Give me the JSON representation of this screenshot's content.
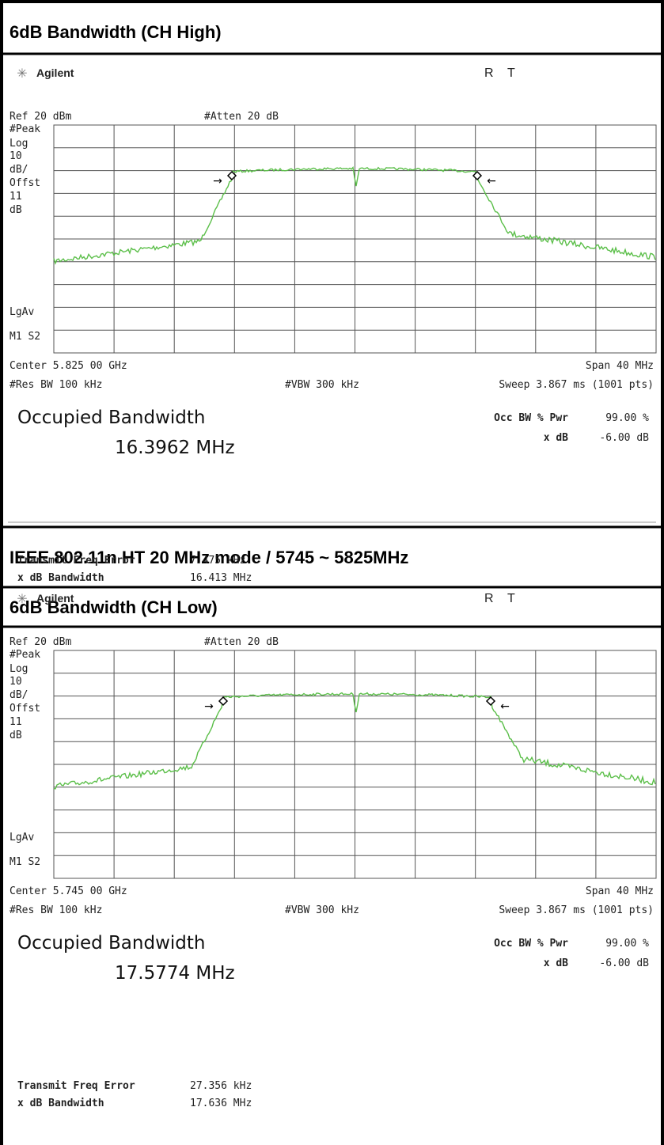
{
  "header1": "6dB Bandwidth (CH High)",
  "heading": "IEEE 802.11n HT 20 MHz mode / 5745 ~ 5825MHz",
  "header2": "6dB Bandwidth (CH Low)",
  "panels": [
    {
      "brand": "Agilent",
      "r": "R",
      "t": "T",
      "ref": "Ref 20 dBm",
      "atten": "#Atten 20 dB",
      "left_labels": [
        "#Peak",
        "Log",
        "10",
        "dB/",
        "Offst",
        "11",
        "dB"
      ],
      "lgav": "LgAv",
      "marker": "M1 S2",
      "center": "Center 5.825 00 GHz",
      "span": "Span 40 MHz",
      "res_bw": "#Res BW 100 kHz",
      "vbw": "#VBW 300 kHz",
      "sweep": "Sweep 3.867 ms (1001 pts)",
      "occ_title": "Occupied Bandwidth",
      "occ_value": "16.3962 MHz",
      "occ_pwr_label": "Occ BW % Pwr",
      "occ_pwr": "99.00 %",
      "xdb_label": "x dB",
      "xdb": "-6.00 dB",
      "tfe_label": "Transmit Freq Error",
      "tfe": "7.475 kHz",
      "xbw_label": "x dB Bandwidth",
      "xbw": "16.413 MHz"
    },
    {
      "brand": "Agilent",
      "r": "R",
      "t": "T",
      "ref": "Ref 20 dBm",
      "atten": "#Atten 20 dB",
      "left_labels": [
        "#Peak",
        "Log",
        "10",
        "dB/",
        "Offst",
        "11",
        "dB"
      ],
      "lgav": "LgAv",
      "marker": "M1 S2",
      "center": "Center 5.745 00 GHz",
      "span": "Span 40 MHz",
      "res_bw": "#Res BW 100 kHz",
      "vbw": "#VBW 300 kHz",
      "sweep": "Sweep 3.867 ms (1001 pts)",
      "occ_title": "Occupied Bandwidth",
      "occ_value": "17.5774 MHz",
      "occ_pwr_label": "Occ BW % Pwr",
      "occ_pwr": "99.00 %",
      "xdb_label": "x dB",
      "xdb": "-6.00 dB",
      "tfe_label": "Transmit Freq Error",
      "tfe": "27.356 kHz",
      "xbw_label": "x dB Bandwidth",
      "xbw": "17.636 MHz"
    }
  ]
}
